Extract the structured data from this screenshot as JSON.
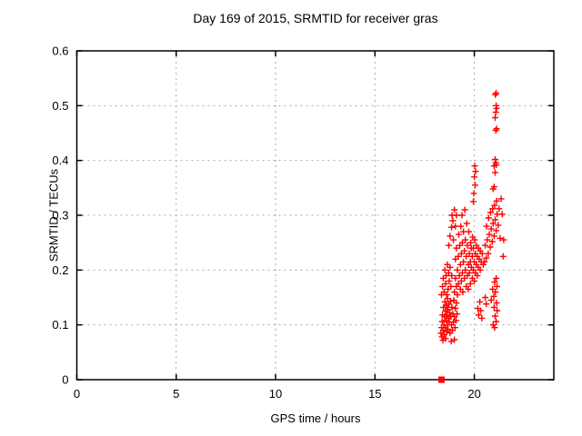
{
  "window": {
    "background": "#ffffff"
  },
  "chart_data": {
    "type": "scatter",
    "title": "Day 169 of 2015, SRMTID for receiver gras",
    "xlabel": "GPS time / hours",
    "ylabel": "SRMTID / TECUs",
    "xlim": [
      0,
      24
    ],
    "ylim": [
      0,
      0.6
    ],
    "xticks": [
      0,
      5,
      10,
      15,
      20
    ],
    "xtick_labels": [
      "0",
      "5",
      "10",
      "15",
      "20"
    ],
    "yticks": [
      0,
      0.1,
      0.2,
      0.3,
      0.4,
      0.5,
      0.6
    ],
    "ytick_labels": [
      "0",
      "0.1",
      "0.2",
      "0.3",
      "0.4",
      "0.5",
      "0.6"
    ],
    "grid": true,
    "legend_position": "none",
    "colors": {
      "points": "#ff0000",
      "grid": "#a8a8a8",
      "axis": "#000000",
      "text": "#000000",
      "background": "#ffffff"
    },
    "marker": {
      "shape": "plus",
      "size": 7
    },
    "zero_marker": {
      "shape": "filled-square",
      "color": "#ff0000",
      "x": 18.35,
      "y": 0.0,
      "size": 7
    },
    "series": [
      {
        "name": "SRMTID",
        "points": [
          [
            18.32,
            0.085
          ],
          [
            18.35,
            0.095
          ],
          [
            18.37,
            0.078
          ],
          [
            18.38,
            0.106
          ],
          [
            18.4,
            0.118
          ],
          [
            18.42,
            0.072
          ],
          [
            18.43,
            0.09
          ],
          [
            18.45,
            0.132
          ],
          [
            18.47,
            0.1
          ],
          [
            18.48,
            0.082
          ],
          [
            18.5,
            0.115
          ],
          [
            18.52,
            0.142
          ],
          [
            18.53,
            0.095
          ],
          [
            18.55,
            0.125
          ],
          [
            18.56,
            0.075
          ],
          [
            18.58,
            0.108
          ],
          [
            18.6,
            0.088
          ],
          [
            18.6,
            0.135
          ],
          [
            18.62,
            0.118
          ],
          [
            18.64,
            0.1
          ],
          [
            18.65,
            0.148
          ],
          [
            18.67,
            0.128
          ],
          [
            18.68,
            0.092
          ],
          [
            18.7,
            0.112
          ],
          [
            18.72,
            0.138
          ],
          [
            18.74,
            0.105
          ],
          [
            18.76,
            0.122
          ],
          [
            18.78,
            0.085
          ],
          [
            18.8,
            0.143
          ],
          [
            18.82,
            0.115
          ],
          [
            18.84,
            0.07
          ],
          [
            18.85,
            0.1
          ],
          [
            18.87,
            0.132
          ],
          [
            18.9,
            0.09
          ],
          [
            18.92,
            0.12
          ],
          [
            18.95,
            0.105
          ],
          [
            18.97,
            0.145
          ],
          [
            19.0,
            0.073
          ],
          [
            19.0,
            0.115
          ],
          [
            19.03,
            0.095
          ],
          [
            19.05,
            0.13
          ],
          [
            19.08,
            0.108
          ],
          [
            19.1,
            0.14
          ],
          [
            19.13,
            0.12
          ],
          [
            18.35,
            0.155
          ],
          [
            18.4,
            0.17
          ],
          [
            18.44,
            0.185
          ],
          [
            18.48,
            0.16
          ],
          [
            18.52,
            0.2
          ],
          [
            18.55,
            0.175
          ],
          [
            18.58,
            0.19
          ],
          [
            18.61,
            0.155
          ],
          [
            18.64,
            0.21
          ],
          [
            18.68,
            0.165
          ],
          [
            18.71,
            0.195
          ],
          [
            18.74,
            0.18
          ],
          [
            18.78,
            0.205
          ],
          [
            18.82,
            0.17
          ],
          [
            18.86,
            0.19
          ],
          [
            18.72,
            0.245
          ],
          [
            18.78,
            0.262
          ],
          [
            18.85,
            0.278
          ],
          [
            18.88,
            0.3
          ],
          [
            18.92,
            0.29
          ],
          [
            18.95,
            0.255
          ],
          [
            19.0,
            0.31
          ],
          [
            19.05,
            0.28
          ],
          [
            19.1,
            0.3
          ],
          [
            19.0,
            0.16
          ],
          [
            19.05,
            0.185
          ],
          [
            19.05,
            0.22
          ],
          [
            19.1,
            0.17
          ],
          [
            19.1,
            0.24
          ],
          [
            19.15,
            0.155
          ],
          [
            19.15,
            0.2
          ],
          [
            19.2,
            0.175
          ],
          [
            19.2,
            0.225
          ],
          [
            19.22,
            0.265
          ],
          [
            19.25,
            0.19
          ],
          [
            19.27,
            0.245
          ],
          [
            19.3,
            0.165
          ],
          [
            19.3,
            0.21
          ],
          [
            19.32,
            0.28
          ],
          [
            19.35,
            0.18
          ],
          [
            19.35,
            0.23
          ],
          [
            19.38,
            0.3
          ],
          [
            19.4,
            0.195
          ],
          [
            19.4,
            0.25
          ],
          [
            19.42,
            0.16
          ],
          [
            19.45,
            0.215
          ],
          [
            19.45,
            0.27
          ],
          [
            19.5,
            0.185
          ],
          [
            19.5,
            0.235
          ],
          [
            19.52,
            0.31
          ],
          [
            19.55,
            0.2
          ],
          [
            19.55,
            0.255
          ],
          [
            19.6,
            0.17
          ],
          [
            19.6,
            0.225
          ],
          [
            19.62,
            0.285
          ],
          [
            19.65,
            0.19
          ],
          [
            19.65,
            0.245
          ],
          [
            19.7,
            0.165
          ],
          [
            19.7,
            0.21
          ],
          [
            19.72,
            0.27
          ],
          [
            19.75,
            0.195
          ],
          [
            19.75,
            0.23
          ],
          [
            19.8,
            0.175
          ],
          [
            19.8,
            0.215
          ],
          [
            19.82,
            0.25
          ],
          [
            19.85,
            0.205
          ],
          [
            19.85,
            0.24
          ],
          [
            19.9,
            0.185
          ],
          [
            19.9,
            0.225
          ],
          [
            19.92,
            0.26
          ],
          [
            19.95,
            0.2
          ],
          [
            19.95,
            0.24
          ],
          [
            20.0,
            0.18
          ],
          [
            20.0,
            0.215
          ],
          [
            20.02,
            0.255
          ],
          [
            20.05,
            0.195
          ],
          [
            20.05,
            0.23
          ],
          [
            20.1,
            0.21
          ],
          [
            20.1,
            0.245
          ],
          [
            20.15,
            0.19
          ],
          [
            20.15,
            0.225
          ],
          [
            20.2,
            0.205
          ],
          [
            20.2,
            0.24
          ],
          [
            20.25,
            0.22
          ],
          [
            20.3,
            0.2
          ],
          [
            20.3,
            0.235
          ],
          [
            20.35,
            0.215
          ],
          [
            20.4,
            0.23
          ],
          [
            20.45,
            0.21
          ],
          [
            19.95,
            0.325
          ],
          [
            19.98,
            0.34
          ],
          [
            20.0,
            0.37
          ],
          [
            20.02,
            0.39
          ],
          [
            20.04,
            0.355
          ],
          [
            20.06,
            0.38
          ],
          [
            20.5,
            0.215
          ],
          [
            20.55,
            0.245
          ],
          [
            20.6,
            0.222
          ],
          [
            20.62,
            0.28
          ],
          [
            20.65,
            0.255
          ],
          [
            20.7,
            0.23
          ],
          [
            20.72,
            0.295
          ],
          [
            20.75,
            0.265
          ],
          [
            20.8,
            0.242
          ],
          [
            20.82,
            0.305
          ],
          [
            20.85,
            0.275
          ],
          [
            20.9,
            0.252
          ],
          [
            20.92,
            0.312
          ],
          [
            20.95,
            0.285
          ],
          [
            21.0,
            0.262
          ],
          [
            21.02,
            0.318
          ],
          [
            21.05,
            0.292
          ],
          [
            21.1,
            0.272
          ],
          [
            21.12,
            0.326
          ],
          [
            21.15,
            0.302
          ],
          [
            21.2,
            0.282
          ],
          [
            21.25,
            0.312
          ],
          [
            21.3,
            0.258
          ],
          [
            21.35,
            0.33
          ],
          [
            21.4,
            0.302
          ],
          [
            21.45,
            0.225
          ],
          [
            21.48,
            0.255
          ],
          [
            20.18,
            0.13
          ],
          [
            20.22,
            0.118
          ],
          [
            20.28,
            0.142
          ],
          [
            20.32,
            0.126
          ],
          [
            20.38,
            0.112
          ],
          [
            20.95,
            0.1
          ],
          [
            21.0,
            0.132
          ],
          [
            21.02,
            0.095
          ],
          [
            21.05,
            0.116
          ],
          [
            21.1,
            0.106
          ],
          [
            21.12,
            0.14
          ],
          [
            21.15,
            0.126
          ],
          [
            20.92,
            0.165
          ],
          [
            20.98,
            0.152
          ],
          [
            21.02,
            0.178
          ],
          [
            21.06,
            0.16
          ],
          [
            21.1,
            0.185
          ],
          [
            21.14,
            0.17
          ],
          [
            20.55,
            0.15
          ],
          [
            20.6,
            0.138
          ],
          [
            20.85,
            0.145
          ],
          [
            20.95,
            0.348
          ],
          [
            21.0,
            0.352
          ],
          [
            21.0,
            0.39
          ],
          [
            21.05,
            0.378
          ],
          [
            21.05,
            0.402
          ],
          [
            21.08,
            0.396
          ],
          [
            21.1,
            0.392
          ],
          [
            21.08,
            0.455
          ],
          [
            21.12,
            0.458
          ],
          [
            21.05,
            0.478
          ],
          [
            21.08,
            0.488
          ],
          [
            21.1,
            0.5
          ],
          [
            21.12,
            0.495
          ],
          [
            21.06,
            0.52
          ],
          [
            21.1,
            0.523
          ]
        ]
      }
    ]
  }
}
